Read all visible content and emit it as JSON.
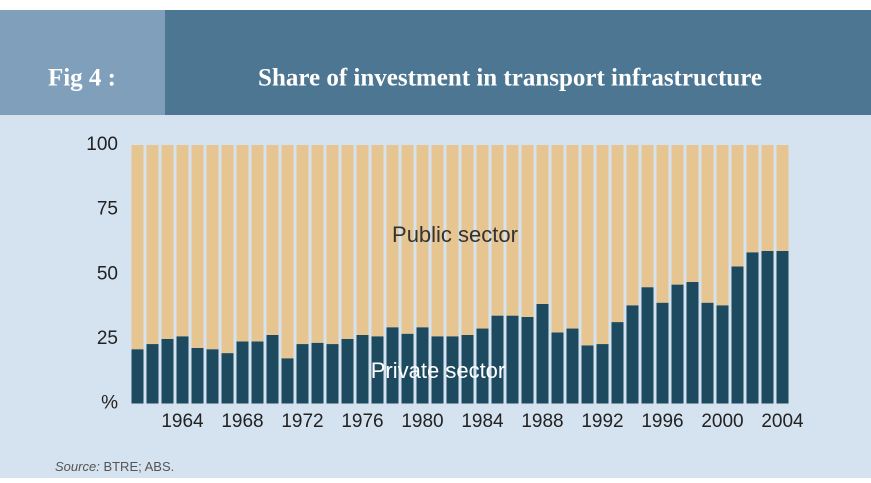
{
  "chart_data": {
    "type": "stacked-bar",
    "fig_label": "Fig 4 :",
    "title": "Share of investment in transport infrastructure",
    "categories": [
      null,
      null,
      null,
      "1964",
      null,
      null,
      null,
      "1968",
      null,
      null,
      null,
      "1972",
      null,
      null,
      null,
      "1976",
      null,
      null,
      null,
      "1980",
      null,
      null,
      null,
      "1984",
      null,
      null,
      null,
      "1988",
      null,
      null,
      null,
      "1992",
      null,
      null,
      null,
      "1996",
      null,
      null,
      null,
      "2000",
      null,
      null,
      null,
      "2004"
    ],
    "series": [
      {
        "name": "Private sector",
        "color": "#1d4a5f",
        "values": [
          21,
          23,
          25,
          26,
          21.5,
          21,
          19.5,
          24,
          24,
          26.5,
          17.5,
          23,
          23.5,
          23,
          25,
          26.5,
          26,
          29.5,
          27,
          29.5,
          26,
          26,
          26.5,
          29,
          34,
          34,
          33.5,
          38.5,
          27.5,
          29,
          22.5,
          23,
          31.5,
          38,
          45,
          39,
          46,
          47,
          39,
          38,
          53,
          58.5,
          59,
          59
        ]
      },
      {
        "name": "Public sector",
        "color": "#e6c590",
        "values": [
          79,
          77,
          75,
          74,
          78.5,
          79,
          80.5,
          76,
          76,
          73.5,
          82.5,
          77,
          76.5,
          77,
          75,
          73.5,
          74,
          70.5,
          73,
          70.5,
          74,
          74,
          73.5,
          71,
          66,
          66,
          66.5,
          61.5,
          72.5,
          71,
          77.5,
          77,
          68.5,
          62,
          55,
          61,
          54,
          53,
          61,
          62,
          47,
          41.5,
          41,
          41
        ]
      }
    ],
    "ylim": [
      0,
      100
    ],
    "yticks": [
      {
        "value": 0,
        "label": "%"
      },
      25,
      50,
      75,
      100
    ],
    "source_label": "Source:",
    "source": "BTRE; ABS."
  }
}
